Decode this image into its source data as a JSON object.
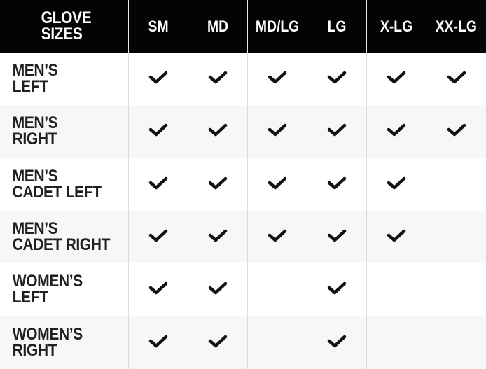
{
  "header": {
    "title_line1": "GLOVE",
    "title_line2": "SIZES"
  },
  "sizes": [
    "SM",
    "MD",
    "MD/LG",
    "LG",
    "X-LG",
    "XX-LG"
  ],
  "rows": [
    {
      "line1": "MEN’S",
      "line2": "LEFT",
      "available": [
        true,
        true,
        true,
        true,
        true,
        true
      ]
    },
    {
      "line1": "MEN’S",
      "line2": "RIGHT",
      "available": [
        true,
        true,
        true,
        true,
        true,
        true
      ]
    },
    {
      "line1": "MEN’S",
      "line2": "CADET LEFT",
      "available": [
        true,
        true,
        true,
        true,
        true,
        false
      ]
    },
    {
      "line1": "MEN’S",
      "line2": "CADET RIGHT",
      "available": [
        true,
        true,
        true,
        true,
        true,
        false
      ]
    },
    {
      "line1": "WOMEN’S",
      "line2": "LEFT",
      "available": [
        true,
        true,
        false,
        true,
        false,
        false
      ]
    },
    {
      "line1": "WOMEN’S",
      "line2": "RIGHT",
      "available": [
        true,
        true,
        false,
        true,
        false,
        false
      ]
    }
  ],
  "colors": {
    "header_bg": "#040406",
    "text": "#231f20",
    "alt_row": "#f7f7f7"
  },
  "icons": {
    "available": "checkmark-icon"
  }
}
